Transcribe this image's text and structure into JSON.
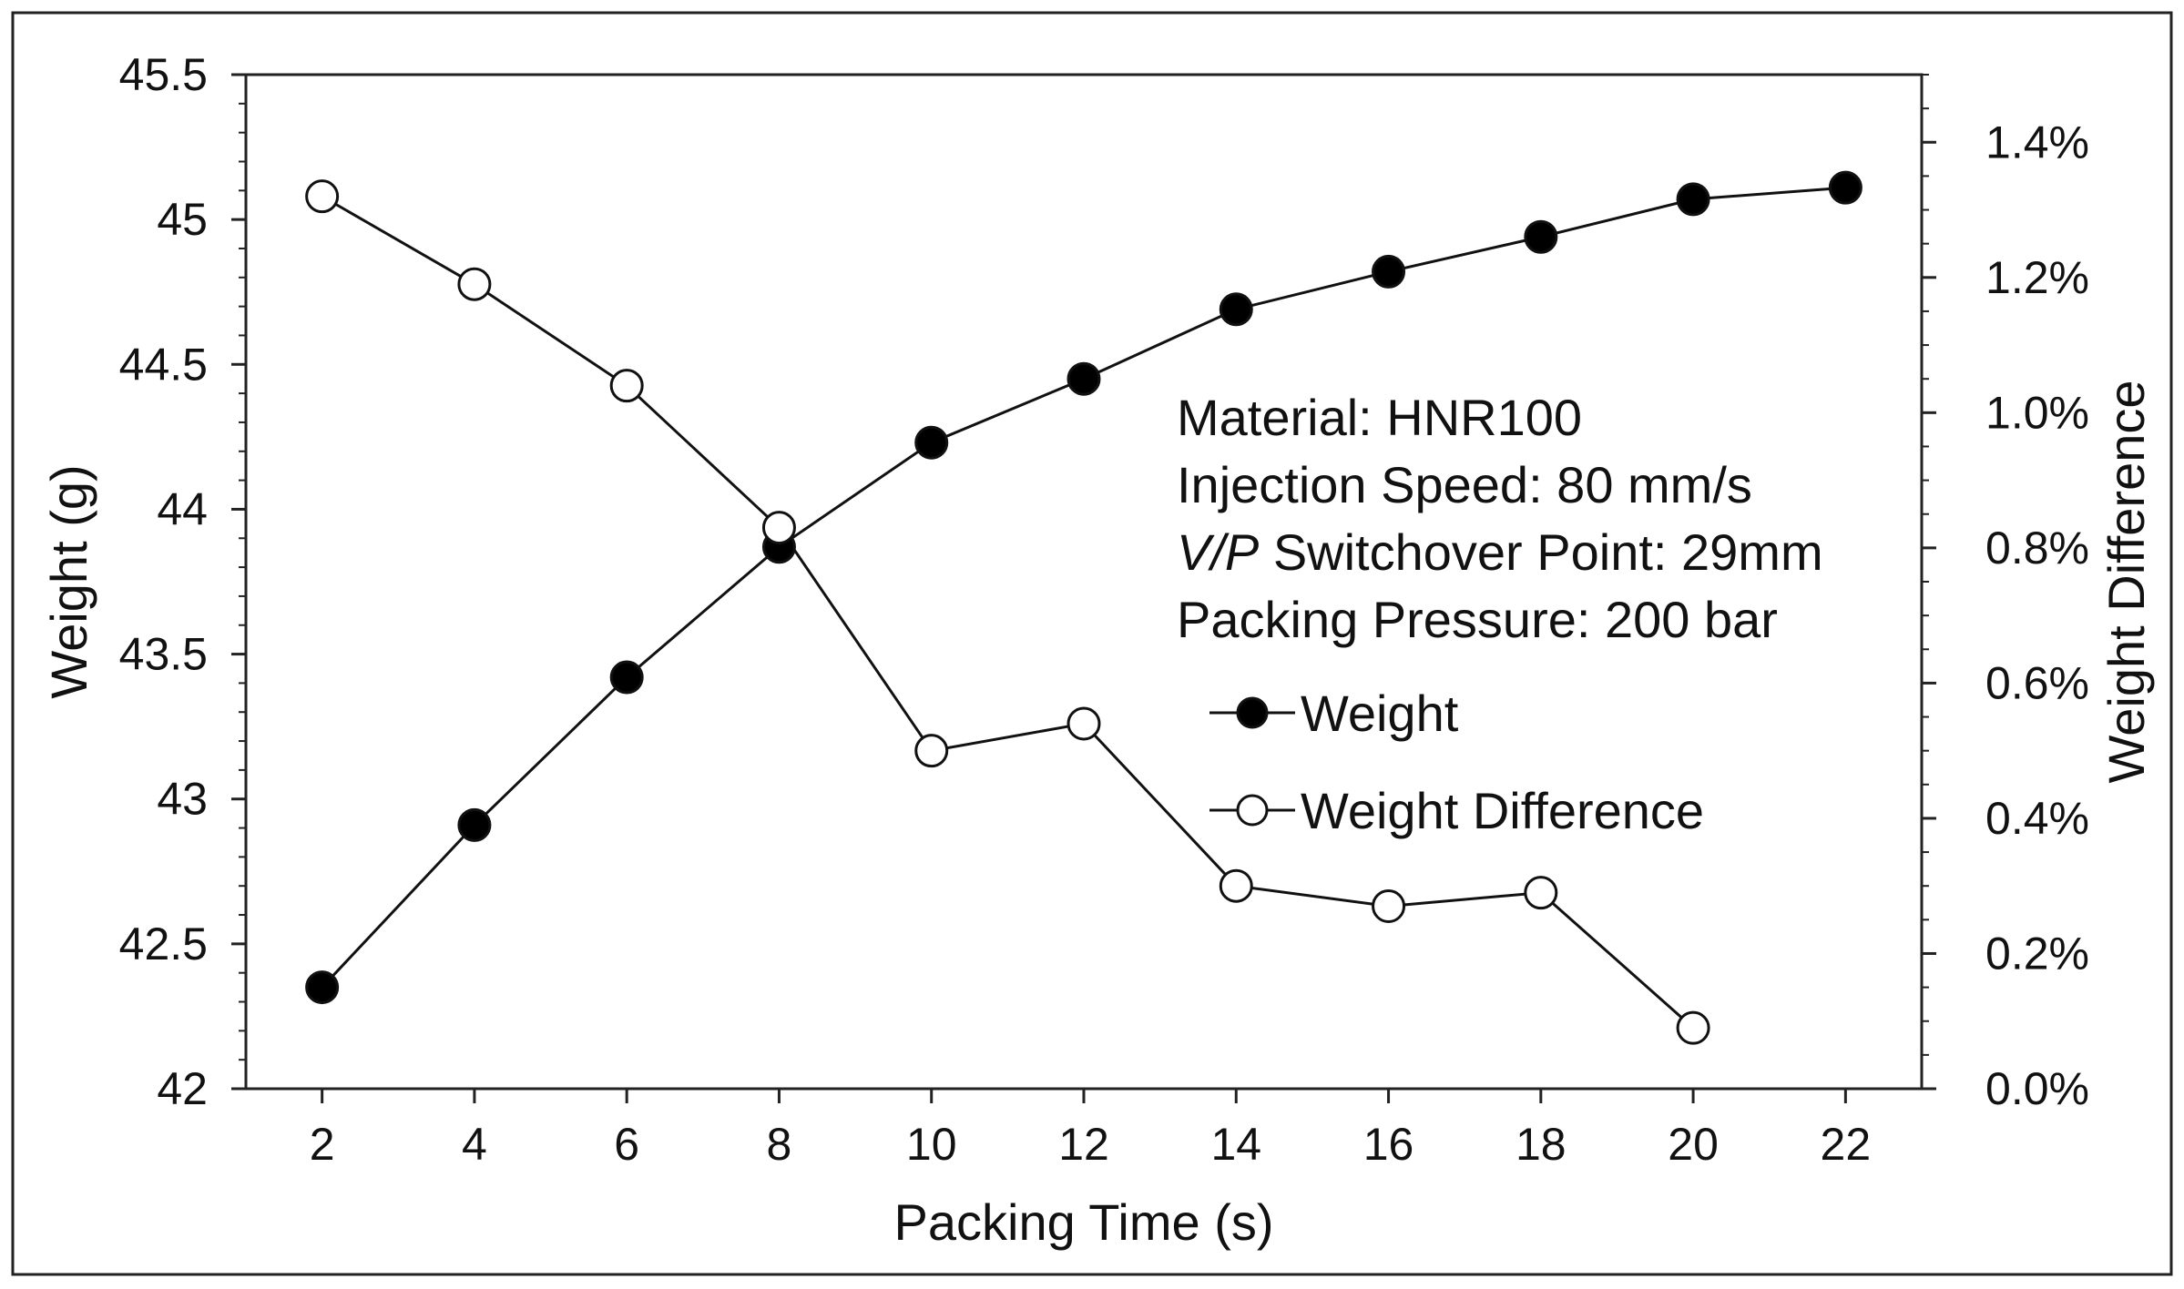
{
  "chart_data": {
    "type": "line",
    "xlabel": "Packing Time (s)",
    "ylabel": "Weight (g)",
    "y2label": "Weight Difference",
    "x_ticks": [
      2,
      4,
      6,
      8,
      10,
      12,
      14,
      16,
      18,
      20,
      22
    ],
    "xlim": [
      1,
      23
    ],
    "ylim": [
      42,
      45.5
    ],
    "y_ticks": [
      42,
      42.5,
      43,
      43.5,
      44,
      44.5,
      45,
      45.5
    ],
    "y_tick_labels": [
      "42",
      "42.5",
      "43",
      "43.5",
      "44",
      "44.5",
      "45",
      "45.5"
    ],
    "y2lim": [
      0,
      1.5
    ],
    "y2_ticks": [
      0,
      0.2,
      0.4,
      0.6,
      0.8,
      1.0,
      1.2,
      1.4
    ],
    "y2_tick_labels": [
      "0.0%",
      "0.2%",
      "0.4%",
      "0.6%",
      "0.8%",
      "1.0%",
      "1.2%",
      "1.4%"
    ],
    "series": [
      {
        "name": "Weight",
        "axis": "left",
        "marker": "filled-circle",
        "x": [
          2,
          4,
          6,
          8,
          10,
          12,
          14,
          16,
          18,
          20,
          22
        ],
        "values": [
          42.35,
          42.91,
          43.42,
          43.87,
          44.23,
          44.45,
          44.69,
          44.82,
          44.94,
          45.07,
          45.11
        ]
      },
      {
        "name": "Weight Difference",
        "axis": "right",
        "unit": "%",
        "marker": "open-circle",
        "x": [
          2,
          4,
          6,
          8,
          10,
          12,
          14,
          16,
          18,
          20
        ],
        "values": [
          1.32,
          1.19,
          1.04,
          0.83,
          0.5,
          0.54,
          0.3,
          0.27,
          0.29,
          0.09
        ]
      }
    ],
    "annotations": [
      {
        "text": "Material: HNR100"
      },
      {
        "text": "Injection Speed: 80 mm/s"
      },
      {
        "text_italic": "V/P",
        "text": " Switchover Point: 29mm"
      },
      {
        "text": "Packing Pressure: 200 bar"
      }
    ],
    "legend": {
      "placement": "right-center",
      "entries": [
        "Weight",
        "Weight Difference"
      ]
    },
    "colors": {
      "line": "#111111",
      "filled_marker": "#000000",
      "open_marker_fill": "#ffffff",
      "frame": "#222222"
    }
  }
}
